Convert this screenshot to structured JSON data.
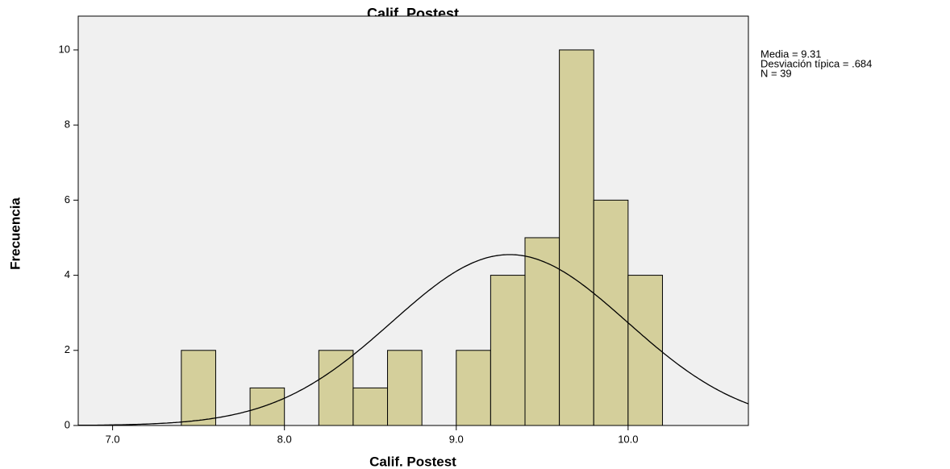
{
  "chart_data": {
    "type": "histogram",
    "title": "Calif. Postest",
    "xlabel": "Calif. Postest",
    "ylabel": "Frecuencia",
    "bins": [
      7.4,
      7.6,
      7.8,
      8.0,
      8.2,
      8.4,
      8.6,
      8.8,
      9.0,
      9.2,
      9.4,
      9.6,
      9.8,
      10.0,
      10.2
    ],
    "values": [
      2,
      0,
      1,
      0,
      2,
      1,
      2,
      0,
      2,
      4,
      5,
      10,
      6,
      4
    ],
    "color": "#d4cf9b",
    "xlim": [
      6.8,
      10.7
    ],
    "ylim": [
      0,
      10.9
    ],
    "xticks": [
      {
        "value": 7,
        "label": "7.0"
      },
      {
        "value": 8,
        "label": "8.0"
      },
      {
        "value": 9,
        "label": "9.0"
      },
      {
        "value": 10,
        "label": "10.0"
      }
    ],
    "yticks": [
      0,
      2,
      4,
      6,
      8,
      10
    ],
    "stats_text": [
      "Media = 9.31",
      "Desviación típica = .684",
      "N = 39"
    ],
    "normal_curve": {
      "mean": 9.31,
      "sd": 0.684,
      "n": 39
    }
  }
}
